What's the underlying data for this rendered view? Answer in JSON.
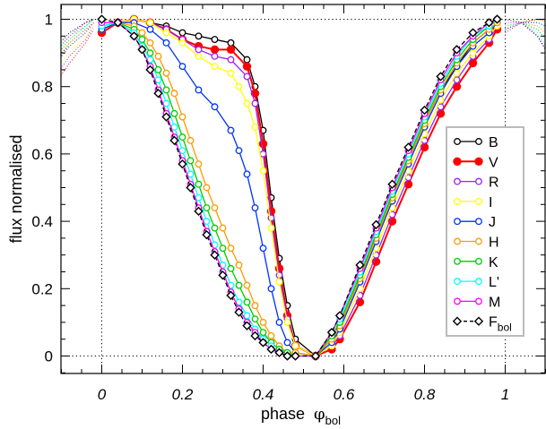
{
  "chart_data": {
    "type": "line",
    "xlabel": "phase",
    "xlabel_symbol": "φ",
    "xlabel_sub": "bol",
    "ylabel": "flux  normalised",
    "xlim": [
      -0.1,
      1.1
    ],
    "ylim": [
      -0.03,
      1.05
    ],
    "x_ticks": [
      0,
      0.2,
      0.4,
      0.6,
      0.8,
      1
    ],
    "x_tick_labels": [
      "0",
      "0.2",
      "0.4",
      "0.6",
      "0.8",
      "1"
    ],
    "y_ticks": [
      0,
      0.2,
      0.4,
      0.6,
      0.8,
      1
    ],
    "y_tick_labels": [
      "0",
      "0.2",
      "0.4",
      "0.6",
      "0.8",
      "1"
    ],
    "reference_lines": {
      "x": [
        0,
        1
      ],
      "y": [
        0,
        1
      ],
      "style": "dotted"
    },
    "legend_position": "right-middle",
    "series": [
      {
        "name": "B",
        "color": "#000000",
        "marker": "open-circle",
        "x": [
          0.0,
          0.04,
          0.08,
          0.12,
          0.16,
          0.2,
          0.24,
          0.28,
          0.32,
          0.36,
          0.38,
          0.4,
          0.42,
          0.44,
          0.46,
          0.48,
          0.53,
          0.57,
          0.59,
          0.64,
          0.68,
          0.72,
          0.76,
          0.8,
          0.84,
          0.88,
          0.92,
          0.96,
          0.98
        ],
        "y": [
          0.97,
          0.99,
          1.0,
          0.99,
          0.98,
          0.96,
          0.95,
          0.94,
          0.93,
          0.88,
          0.8,
          0.67,
          0.47,
          0.29,
          0.15,
          0.05,
          0.0,
          0.05,
          0.09,
          0.23,
          0.35,
          0.47,
          0.58,
          0.69,
          0.79,
          0.86,
          0.93,
          0.97,
          0.99
        ]
      },
      {
        "name": "V",
        "color": "#ff0000",
        "marker": "filled-circle",
        "x": [
          0.0,
          0.04,
          0.08,
          0.12,
          0.16,
          0.2,
          0.24,
          0.28,
          0.32,
          0.36,
          0.38,
          0.4,
          0.42,
          0.44,
          0.46,
          0.48,
          0.53,
          0.57,
          0.59,
          0.64,
          0.68,
          0.72,
          0.76,
          0.8,
          0.84,
          0.88,
          0.92,
          0.96,
          0.98
        ],
        "y": [
          0.96,
          0.99,
          1.0,
          0.99,
          0.97,
          0.94,
          0.92,
          0.91,
          0.91,
          0.86,
          0.78,
          0.63,
          0.43,
          0.26,
          0.12,
          0.03,
          0.0,
          0.02,
          0.05,
          0.16,
          0.28,
          0.4,
          0.51,
          0.62,
          0.72,
          0.8,
          0.87,
          0.93,
          0.97
        ]
      },
      {
        "name": "R",
        "color": "#a020f0",
        "marker": "open-circle",
        "x": [
          0.0,
          0.04,
          0.08,
          0.12,
          0.16,
          0.2,
          0.24,
          0.28,
          0.32,
          0.36,
          0.38,
          0.4,
          0.42,
          0.44,
          0.46,
          0.48,
          0.53,
          0.57,
          0.59,
          0.64,
          0.68,
          0.72,
          0.76,
          0.8,
          0.84,
          0.88,
          0.92,
          0.96,
          0.98
        ],
        "y": [
          0.97,
          0.99,
          1.0,
          0.99,
          0.97,
          0.94,
          0.91,
          0.89,
          0.88,
          0.83,
          0.75,
          0.6,
          0.41,
          0.24,
          0.11,
          0.03,
          0.0,
          0.03,
          0.06,
          0.18,
          0.3,
          0.42,
          0.53,
          0.64,
          0.74,
          0.82,
          0.89,
          0.94,
          0.98
        ]
      },
      {
        "name": "I",
        "color": "#ffff00",
        "marker": "open-circle",
        "x": [
          0.0,
          0.04,
          0.08,
          0.12,
          0.16,
          0.2,
          0.24,
          0.28,
          0.32,
          0.34,
          0.36,
          0.38,
          0.4,
          0.42,
          0.44,
          0.46,
          0.48,
          0.53,
          0.57,
          0.59,
          0.64,
          0.68,
          0.72,
          0.76,
          0.8,
          0.84,
          0.88,
          0.92,
          0.96,
          0.98
        ],
        "y": [
          0.97,
          0.99,
          1.0,
          0.99,
          0.96,
          0.93,
          0.89,
          0.86,
          0.84,
          0.8,
          0.75,
          0.68,
          0.55,
          0.38,
          0.22,
          0.1,
          0.03,
          0.0,
          0.03,
          0.07,
          0.2,
          0.32,
          0.44,
          0.55,
          0.66,
          0.76,
          0.84,
          0.9,
          0.95,
          0.98
        ]
      },
      {
        "name": "J",
        "color": "#0033ff",
        "marker": "open-circle",
        "x": [
          0.0,
          0.04,
          0.08,
          0.12,
          0.16,
          0.2,
          0.24,
          0.28,
          0.32,
          0.34,
          0.36,
          0.38,
          0.4,
          0.42,
          0.44,
          0.46,
          0.48,
          0.53,
          0.57,
          0.59,
          0.64,
          0.68,
          0.72,
          0.76,
          0.8,
          0.84,
          0.88,
          0.92,
          0.96,
          0.98
        ],
        "y": [
          0.97,
          0.99,
          0.99,
          0.97,
          0.93,
          0.86,
          0.79,
          0.74,
          0.67,
          0.61,
          0.54,
          0.44,
          0.32,
          0.2,
          0.1,
          0.04,
          0.01,
          0.0,
          0.04,
          0.08,
          0.22,
          0.34,
          0.46,
          0.57,
          0.68,
          0.78,
          0.86,
          0.92,
          0.96,
          0.99
        ]
      },
      {
        "name": "H",
        "color": "#ff9900",
        "marker": "open-circle",
        "x": [
          0.0,
          0.04,
          0.08,
          0.1,
          0.12,
          0.14,
          0.16,
          0.18,
          0.2,
          0.22,
          0.24,
          0.26,
          0.28,
          0.3,
          0.32,
          0.34,
          0.36,
          0.38,
          0.4,
          0.42,
          0.44,
          0.46,
          0.48,
          0.53,
          0.57,
          0.59,
          0.64,
          0.68,
          0.72,
          0.76,
          0.8,
          0.84,
          0.88,
          0.92,
          0.96,
          0.98
        ],
        "y": [
          0.98,
          0.99,
          0.98,
          0.96,
          0.93,
          0.89,
          0.84,
          0.78,
          0.71,
          0.64,
          0.57,
          0.5,
          0.44,
          0.38,
          0.32,
          0.27,
          0.21,
          0.15,
          0.1,
          0.06,
          0.03,
          0.01,
          0.01,
          0.0,
          0.05,
          0.09,
          0.23,
          0.35,
          0.47,
          0.58,
          0.69,
          0.79,
          0.87,
          0.93,
          0.97,
          0.99
        ]
      },
      {
        "name": "K",
        "color": "#00cc00",
        "marker": "open-circle",
        "x": [
          0.0,
          0.04,
          0.08,
          0.1,
          0.12,
          0.14,
          0.16,
          0.18,
          0.2,
          0.22,
          0.24,
          0.26,
          0.28,
          0.3,
          0.32,
          0.34,
          0.36,
          0.38,
          0.4,
          0.42,
          0.44,
          0.46,
          0.48,
          0.53,
          0.57,
          0.59,
          0.64,
          0.68,
          0.72,
          0.76,
          0.8,
          0.84,
          0.88,
          0.92,
          0.96,
          0.98
        ],
        "y": [
          0.98,
          0.99,
          0.97,
          0.94,
          0.9,
          0.85,
          0.79,
          0.72,
          0.65,
          0.58,
          0.51,
          0.44,
          0.38,
          0.32,
          0.26,
          0.21,
          0.16,
          0.11,
          0.07,
          0.04,
          0.02,
          0.01,
          0.0,
          0.0,
          0.06,
          0.1,
          0.24,
          0.36,
          0.48,
          0.59,
          0.7,
          0.8,
          0.88,
          0.94,
          0.98,
          1.0
        ]
      },
      {
        "name": "L'",
        "color": "#00ffff",
        "marker": "open-circle",
        "x": [
          0.0,
          0.04,
          0.08,
          0.1,
          0.12,
          0.14,
          0.16,
          0.18,
          0.2,
          0.22,
          0.24,
          0.26,
          0.28,
          0.3,
          0.32,
          0.34,
          0.36,
          0.38,
          0.4,
          0.42,
          0.44,
          0.46,
          0.48,
          0.53,
          0.57,
          0.59,
          0.64,
          0.68,
          0.72,
          0.76,
          0.8,
          0.84,
          0.88,
          0.92,
          0.96,
          0.98
        ],
        "y": [
          0.98,
          0.99,
          0.96,
          0.92,
          0.88,
          0.82,
          0.75,
          0.68,
          0.61,
          0.54,
          0.47,
          0.4,
          0.33,
          0.27,
          0.21,
          0.16,
          0.12,
          0.08,
          0.05,
          0.03,
          0.01,
          0.0,
          0.0,
          0.0,
          0.07,
          0.11,
          0.25,
          0.37,
          0.49,
          0.6,
          0.71,
          0.81,
          0.89,
          0.95,
          0.98,
          1.0
        ]
      },
      {
        "name": "M",
        "color": "#ff00ff",
        "marker": "open-circle",
        "x": [
          0.0,
          0.04,
          0.08,
          0.1,
          0.12,
          0.14,
          0.16,
          0.18,
          0.2,
          0.22,
          0.24,
          0.26,
          0.28,
          0.3,
          0.32,
          0.34,
          0.36,
          0.38,
          0.4,
          0.42,
          0.44,
          0.46,
          0.48,
          0.53,
          0.57,
          0.59,
          0.64,
          0.68,
          0.72,
          0.76,
          0.8,
          0.84,
          0.88,
          0.92,
          0.96,
          0.98
        ],
        "y": [
          0.99,
          0.99,
          0.95,
          0.91,
          0.86,
          0.79,
          0.72,
          0.65,
          0.58,
          0.51,
          0.44,
          0.37,
          0.31,
          0.25,
          0.19,
          0.14,
          0.1,
          0.07,
          0.04,
          0.02,
          0.01,
          0.0,
          0.0,
          0.0,
          0.07,
          0.12,
          0.26,
          0.38,
          0.5,
          0.61,
          0.72,
          0.82,
          0.9,
          0.95,
          0.99,
          1.0
        ]
      },
      {
        "name": "F_bol",
        "color": "#000000",
        "marker": "open-diamond",
        "x": [
          0.0,
          0.04,
          0.08,
          0.1,
          0.12,
          0.14,
          0.16,
          0.18,
          0.2,
          0.22,
          0.24,
          0.26,
          0.28,
          0.3,
          0.32,
          0.34,
          0.36,
          0.38,
          0.4,
          0.42,
          0.44,
          0.46,
          0.48,
          0.53,
          0.57,
          0.59,
          0.64,
          0.68,
          0.72,
          0.76,
          0.8,
          0.84,
          0.88,
          0.92,
          0.96,
          0.98
        ],
        "y": [
          1.0,
          0.99,
          0.95,
          0.91,
          0.85,
          0.78,
          0.71,
          0.64,
          0.57,
          0.5,
          0.43,
          0.36,
          0.3,
          0.24,
          0.18,
          0.13,
          0.09,
          0.06,
          0.04,
          0.02,
          0.01,
          0.0,
          0.0,
          0.0,
          0.07,
          0.12,
          0.27,
          0.39,
          0.51,
          0.62,
          0.73,
          0.83,
          0.91,
          0.96,
          0.99,
          1.0
        ]
      }
    ],
    "legend": {
      "entries": [
        "B",
        "V",
        "R",
        "I",
        "J",
        "H",
        "K",
        "L'",
        "M",
        "F"
      ],
      "last_entry_subscript": "bol"
    }
  }
}
